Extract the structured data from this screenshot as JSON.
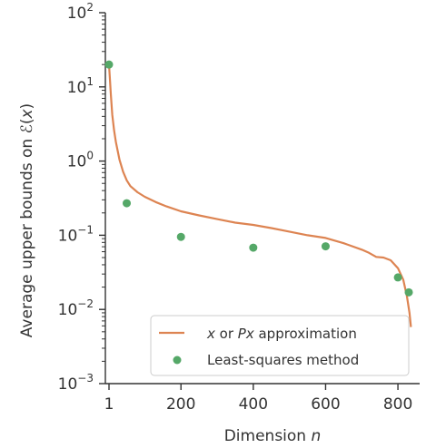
{
  "chart_data": {
    "type": "line",
    "xlabel": "Dimension n",
    "ylabel": "Average upper bounds on ℰ(x)",
    "xlim": [
      1,
      840
    ],
    "ylim": [
      0.001,
      100
    ],
    "yscale": "log",
    "grid": false,
    "legend_position": "bottom-right",
    "x_ticks": [
      {
        "value": 1,
        "label": "1"
      },
      {
        "value": 200,
        "label": "200"
      },
      {
        "value": 400,
        "label": "400"
      },
      {
        "value": 600,
        "label": "600"
      },
      {
        "value": 800,
        "label": "800"
      }
    ],
    "y_ticks": [
      {
        "value": 0.001,
        "base": "10",
        "exp": "−3"
      },
      {
        "value": 0.01,
        "base": "10",
        "exp": "−2"
      },
      {
        "value": 0.1,
        "base": "10",
        "exp": "−1"
      },
      {
        "value": 1,
        "base": "10",
        "exp": "0"
      },
      {
        "value": 10,
        "base": "10",
        "exp": "1"
      },
      {
        "value": 100,
        "base": "10",
        "exp": "2"
      }
    ],
    "series": [
      {
        "name": "x or Px approximation",
        "legend_parts": [
          {
            "text": "x",
            "italic": true
          },
          {
            "text": " or ",
            "italic": false
          },
          {
            "text": "Px",
            "italic": true
          },
          {
            "text": " approximation",
            "italic": false
          }
        ],
        "kind": "line",
        "color": "#dd8452",
        "x": [
          1,
          3,
          6,
          10,
          15,
          20,
          30,
          40,
          50,
          60,
          80,
          100,
          130,
          160,
          200,
          250,
          300,
          350,
          400,
          450,
          500,
          550,
          600,
          650,
          700,
          720,
          740,
          760,
          780,
          800,
          815,
          825,
          832,
          836
        ],
        "y": [
          20,
          14,
          8,
          4.2,
          2.6,
          1.8,
          1.05,
          0.72,
          0.55,
          0.46,
          0.38,
          0.33,
          0.28,
          0.245,
          0.21,
          0.185,
          0.165,
          0.148,
          0.138,
          0.125,
          0.112,
          0.1,
          0.092,
          0.078,
          0.064,
          0.058,
          0.051,
          0.05,
          0.046,
          0.036,
          0.025,
          0.015,
          0.009,
          0.0058
        ]
      },
      {
        "name": "Least-squares method",
        "kind": "scatter",
        "color": "#55a868",
        "x": [
          1,
          50,
          200,
          400,
          600,
          800,
          830
        ],
        "y": [
          20,
          0.27,
          0.095,
          0.068,
          0.071,
          0.027,
          0.017
        ]
      }
    ]
  }
}
